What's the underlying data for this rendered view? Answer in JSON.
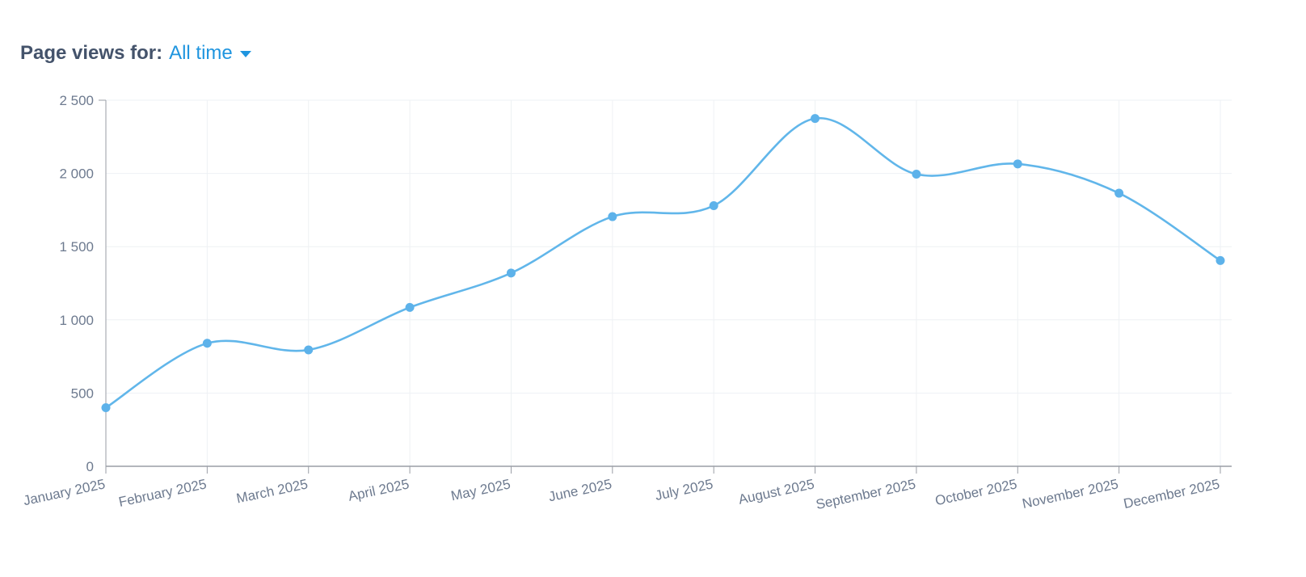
{
  "header": {
    "label": "Page views for:",
    "period_value": "All time",
    "caret_icon": "caret-down-icon"
  },
  "colors": {
    "line": "#61b6ea",
    "point": "#5db2ea",
    "grid": "#eef1f4",
    "axis": "#9a9ea6",
    "tick_text": "#6d7a8f",
    "accent": "#1f95df"
  },
  "chart_data": {
    "type": "line",
    "title": "",
    "xlabel": "",
    "ylabel": "",
    "categories": [
      "January 2025",
      "February 2025",
      "March 2025",
      "April 2025",
      "May 2025",
      "June 2025",
      "July 2025",
      "August 2025",
      "September 2025",
      "October 2025",
      "November 2025",
      "December 2025"
    ],
    "series": [
      {
        "values": [
          400,
          840,
          795,
          1085,
          1320,
          1705,
          1780,
          2375,
          1995,
          2065,
          1865,
          1405
        ]
      }
    ],
    "ylim": [
      0,
      2500
    ],
    "yticks": [
      0,
      500,
      1000,
      1500,
      2000,
      2500
    ],
    "ytick_labels": [
      "0",
      "500",
      "1 000",
      "1 500",
      "2 000",
      "2 500"
    ],
    "grid": true,
    "smooth": true,
    "legend": "none"
  }
}
